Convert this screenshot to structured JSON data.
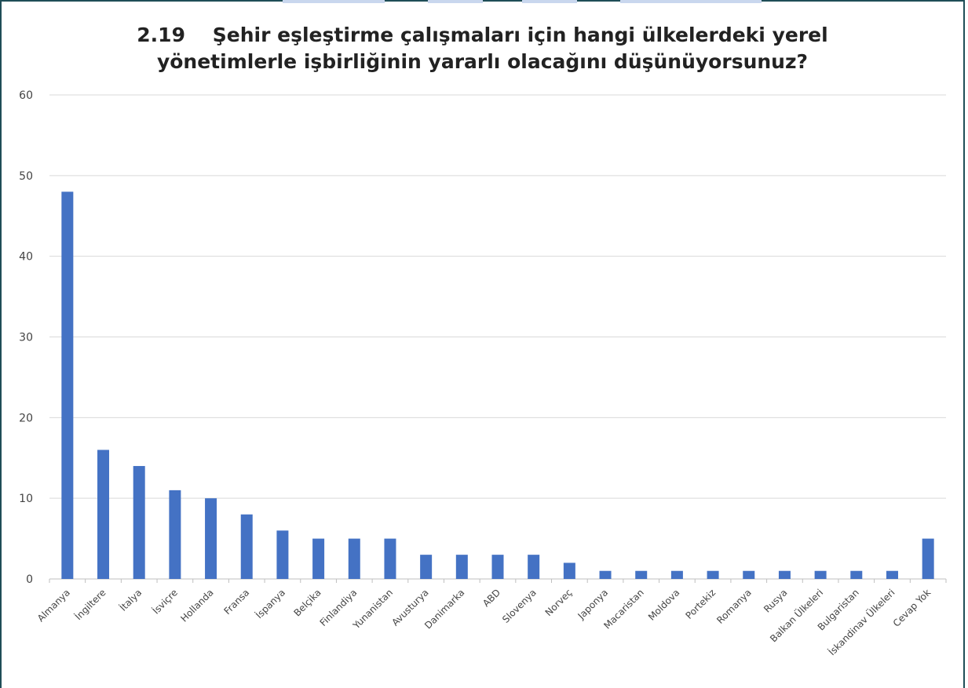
{
  "title_line1": "2.19    Şehir eşleştirme çalışmaları için hangi ülkelerdeki yerel",
  "title_line2": "yönetimlerle işbirliğinin yararlı olacağını düşünüyorsunuz?",
  "colors": {
    "bar": "#4472c4",
    "grid": "#d9d9d9",
    "axis": "#bfbfbf",
    "border": "#1f4e57",
    "text": "#444444"
  },
  "chart_data": {
    "type": "bar",
    "title": "2.19    Şehir eşleştirme çalışmaları için hangi ülkelerdeki yerel yönetimlerle işbirliğinin yararlı olacağını düşünüyorsunuz?",
    "xlabel": "",
    "ylabel": "",
    "ylim": [
      0,
      60
    ],
    "yticks": [
      0,
      10,
      20,
      30,
      40,
      50,
      60
    ],
    "grid": true,
    "legend": "none",
    "categories": [
      "Almanya",
      "İngiltere",
      "İtalya",
      "İsviçre",
      "Hollanda",
      "Fransa",
      "İspanya",
      "Belçika",
      "Finlandiya",
      "Yunanistan",
      "Avusturya",
      "Danimarka",
      "ABD",
      "Slovenya",
      "Norveç",
      "Japonya",
      "Macaristan",
      "Moldova",
      "Portekiz",
      "Romanya",
      "Rusya",
      "Balkan Ülkeleri",
      "Bulgaristan",
      "İskandinav Ülkeleri",
      "Cevap Yok"
    ],
    "values": [
      48,
      16,
      14,
      11,
      10,
      8,
      6,
      5,
      5,
      5,
      3,
      3,
      3,
      3,
      2,
      1,
      1,
      1,
      1,
      1,
      1,
      1,
      1,
      1,
      5
    ]
  }
}
